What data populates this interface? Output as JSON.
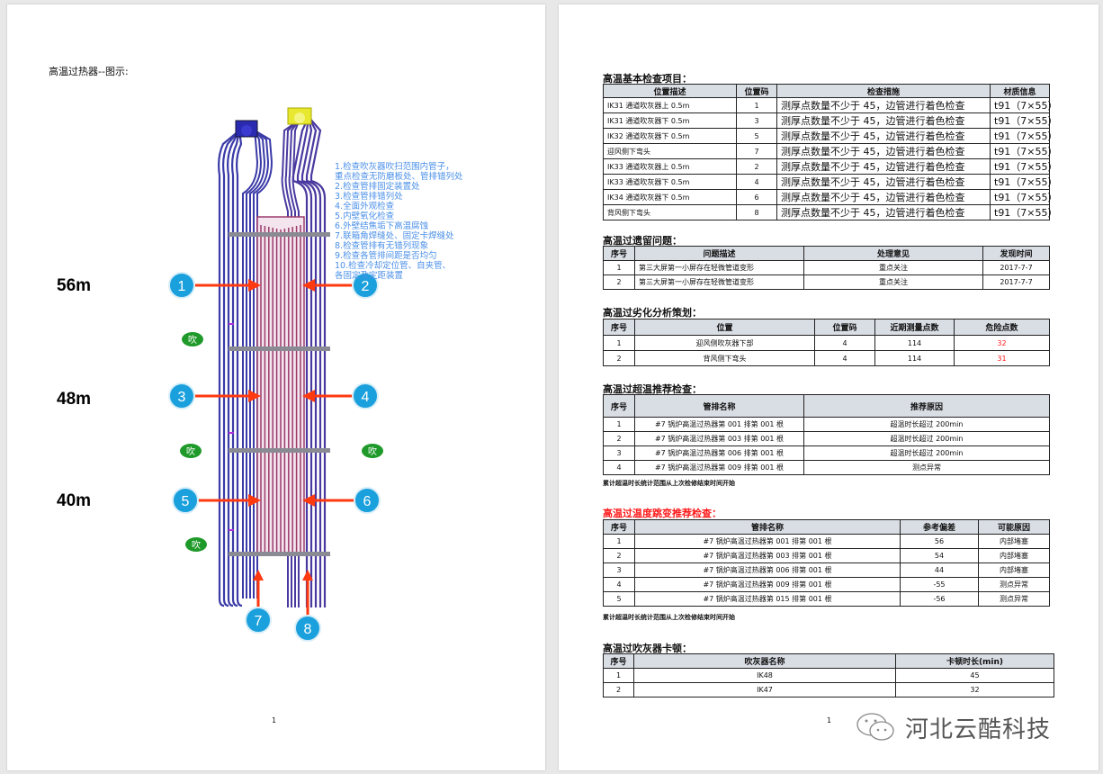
{
  "left_page": {
    "title": "高温过热器--图示:",
    "heights": [
      "56m",
      "48m",
      "40m"
    ],
    "markers": [
      "1",
      "2",
      "3",
      "4",
      "5",
      "6",
      "7",
      "8"
    ],
    "blow_label": "吹",
    "instructions": [
      "1.检查吹灰器吹扫范围内管子，",
      "重点检查无防磨板处、管排错列处",
      "2.检查管排固定装置处",
      "3.检查管排错列处",
      "4.全面外观检查",
      "5.内壁氧化检查",
      "6.外壁结焦垢下高温腐蚀",
      "7.联箱角焊缝处、固定卡焊缝处",
      "8.检查管排有无错列现象",
      "9.检查各管排间距是否均匀",
      "10.检查冷却定位管、自夹管、",
      "各固定及定距装置"
    ],
    "page_number": "1",
    "colors": {
      "tube_outer": "#3a3aa8",
      "tube_inner": "#9a3a6a",
      "arrow": "#ff3a10",
      "marker": "#1aa0dc",
      "blow": "#1f9a2a",
      "header_left": "#2a2ab0",
      "header_right": "#e8e830"
    }
  },
  "right_page": {
    "basic": {
      "title": "高温基本检查项目：",
      "headers": [
        "位置描述",
        "位置码",
        "检查措施",
        "材质信息"
      ],
      "rows": [
        [
          "IK31 通道吹灰器上 0.5m",
          "1",
          "测厚点数量不少于 45，边管进行着色检查",
          "t91（7×55）"
        ],
        [
          "IK31 通道吹灰器下 0.5m",
          "3",
          "测厚点数量不少于 45，边管进行着色检查",
          "t91（7×55）"
        ],
        [
          "IK32 通道吹灰器下 0.5m",
          "5",
          "测厚点数量不少于 45，边管进行着色检查",
          "t91（7×55）"
        ],
        [
          "迎风侧下弯头",
          "7",
          "测厚点数量不少于 45，边管进行着色检查",
          "t91（7×55）"
        ],
        [
          "IK33 通道吹灰器上 0.5m",
          "2",
          "测厚点数量不少于 45，边管进行着色检查",
          "t91（7×55）"
        ],
        [
          "IK33 通道吹灰器下 0.5m",
          "4",
          "测厚点数量不少于 45，边管进行着色检查",
          "t91（7×55）"
        ],
        [
          "IK34 通道吹灰器下 0.5m",
          "6",
          "测厚点数量不少于 45，边管进行着色检查",
          "t91（7×55）"
        ],
        [
          "背风侧下弯头",
          "8",
          "测厚点数量不少于 45，边管进行着色检查",
          "t91（7×55）"
        ]
      ]
    },
    "legacy": {
      "title": "高温过遗留问题：",
      "headers": [
        "序号",
        "问题描述",
        "处理意见",
        "发现时间"
      ],
      "rows": [
        [
          "1",
          "第三大屏第一小屏存在轻微管道变形",
          "重点关注",
          "2017-7-7"
        ],
        [
          "2",
          "第三大屏第一小屏存在轻微管道变形",
          "重点关注",
          "2017-7-7"
        ]
      ]
    },
    "degradation": {
      "title": "高温过劣化分析策划：",
      "headers": [
        "序号",
        "位置",
        "位置码",
        "近期测量点数",
        "危险点数"
      ],
      "rows": [
        [
          "1",
          "迎风侧吹灰器下部",
          "4",
          "114",
          "32"
        ],
        [
          "2",
          "背风侧下弯头",
          "4",
          "114",
          "31"
        ]
      ]
    },
    "overtemp": {
      "title": "高温过超温推荐检查：",
      "headers": [
        "序号",
        "管排名称",
        "推荐原因"
      ],
      "rows": [
        [
          "1",
          "#7 锅炉高温过热器第 001 排第 001 根",
          "超温时长超过 200min"
        ],
        [
          "2",
          "#7 锅炉高温过热器第 003 排第 001 根",
          "超温时长超过 200min"
        ],
        [
          "3",
          "#7 锅炉高温过热器第 006 排第 001 根",
          "超温时长超过 200min"
        ],
        [
          "4",
          "#7 锅炉高温过热器第 009 排第 001 根",
          "测点异常"
        ]
      ],
      "note": "累计超温时长统计范围从上次检修结束时间开始"
    },
    "jump": {
      "title": "高温过温度跳变推荐检查：",
      "headers": [
        "序号",
        "管排名称",
        "参考偏差",
        "可能原因"
      ],
      "rows": [
        [
          "1",
          "#7 锅炉高温过热器第 001 排第 001 根",
          "56",
          "内部堵塞"
        ],
        [
          "2",
          "#7 锅炉高温过热器第 003 排第 001 根",
          "54",
          "内部堵塞"
        ],
        [
          "3",
          "#7 锅炉高温过热器第 006 排第 001 根",
          "44",
          "内部堵塞"
        ],
        [
          "4",
          "#7 锅炉高温过热器第 009 排第 001 根",
          "-55",
          "测点异常"
        ],
        [
          "5",
          "#7 锅炉高温过热器第 015 排第 001 根",
          "-56",
          "测点异常"
        ]
      ],
      "note": "累计超温时长统计范围从上次检修结束时间开始"
    },
    "blower": {
      "title": "高温过吹灰器卡顿：",
      "headers": [
        "序号",
        "吹灰器名称",
        "卡顿时长(min)"
      ],
      "rows": [
        [
          "1",
          "IK48",
          "45"
        ],
        [
          "2",
          "IK47",
          "32"
        ]
      ]
    },
    "page_number": "1",
    "watermark": "河北云酷科技"
  }
}
